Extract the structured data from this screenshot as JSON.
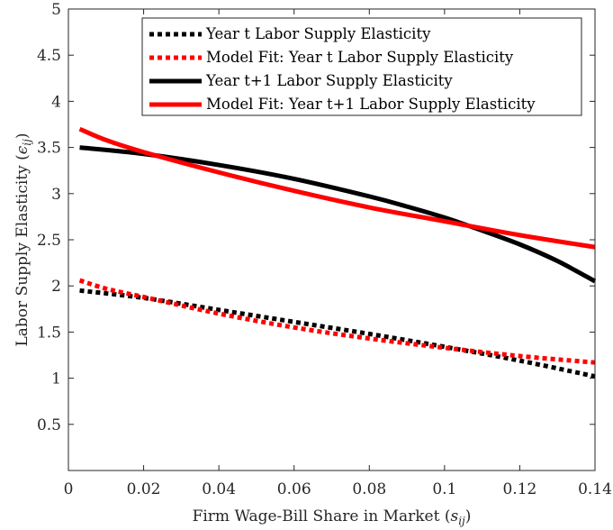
{
  "chart_data": {
    "type": "line",
    "xlabel": {
      "text": "Firm Wage-Bill Share in Market (",
      "math_base": "s",
      "math_sub": "ij",
      "close": ")"
    },
    "ylabel": {
      "text": "Labor Supply Elasticity (",
      "math_base": "ϵ",
      "math_sub": "ij",
      "close": ")"
    },
    "xlim": [
      0,
      0.14
    ],
    "ylim": [
      0,
      5
    ],
    "xticks": [
      0,
      0.02,
      0.04,
      0.06,
      0.08,
      0.1,
      0.12,
      0.14
    ],
    "xtick_labels": [
      "0",
      "0.02",
      "0.04",
      "0.06",
      "0.08",
      "0.1",
      "0.12",
      "0.14"
    ],
    "yticks": [
      0.5,
      1,
      1.5,
      2,
      2.5,
      3,
      3.5,
      4,
      4.5,
      5
    ],
    "ytick_labels": [
      "0.5",
      "1",
      "1.5",
      "2",
      "2.5",
      "3",
      "3.5",
      "4",
      "4.5",
      "5"
    ],
    "grid": false,
    "legend_position": "top-right",
    "series": [
      {
        "name": "Year t Labor Supply Elasticity",
        "color": "#000000",
        "style": "dotted",
        "x": [
          0.003,
          0.02,
          0.04,
          0.06,
          0.08,
          0.1,
          0.12,
          0.14
        ],
        "y": [
          1.95,
          1.87,
          1.74,
          1.61,
          1.48,
          1.34,
          1.19,
          1.02
        ]
      },
      {
        "name": "Model Fit: Year t Labor Supply Elasticity",
        "color": "#ff0000",
        "style": "dotted",
        "x": [
          0.003,
          0.01,
          0.02,
          0.04,
          0.06,
          0.08,
          0.1,
          0.12,
          0.14
        ],
        "y": [
          2.06,
          1.97,
          1.88,
          1.7,
          1.55,
          1.43,
          1.33,
          1.24,
          1.17
        ]
      },
      {
        "name": "Year t+1 Labor Supply Elasticity",
        "color": "#000000",
        "style": "solid",
        "x": [
          0.003,
          0.02,
          0.04,
          0.06,
          0.08,
          0.09,
          0.1,
          0.11,
          0.12,
          0.13,
          0.14
        ],
        "y": [
          3.5,
          3.43,
          3.31,
          3.16,
          2.97,
          2.86,
          2.74,
          2.6,
          2.45,
          2.27,
          2.05
        ]
      },
      {
        "name": "Model Fit: Year t+1 Labor Supply Elasticity",
        "color": "#ff0000",
        "style": "solid",
        "x": [
          0.003,
          0.01,
          0.02,
          0.04,
          0.06,
          0.08,
          0.1,
          0.12,
          0.14
        ],
        "y": [
          3.7,
          3.58,
          3.45,
          3.23,
          3.03,
          2.85,
          2.7,
          2.55,
          2.42
        ]
      }
    ]
  }
}
